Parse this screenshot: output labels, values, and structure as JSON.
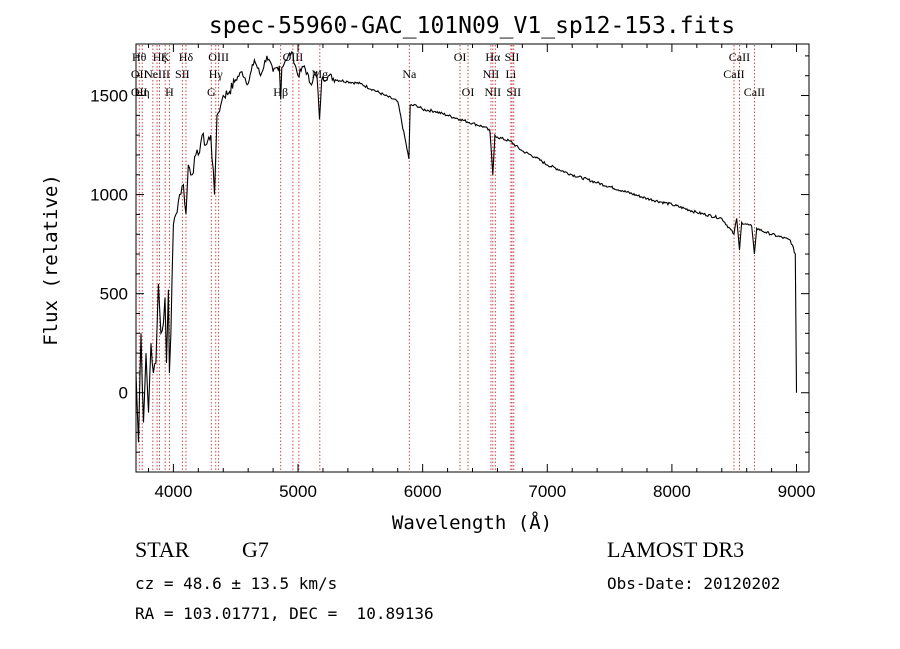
{
  "chart_data": {
    "type": "line",
    "title": "spec-55960-GAC_101N09_V1_sp12-153.fits",
    "xlabel": "Wavelength (Å)",
    "ylabel": "Flux (relative)",
    "xlim": [
      3700,
      9100
    ],
    "ylim": [
      -400,
      1760
    ],
    "xticks": [
      4000,
      5000,
      6000,
      7000,
      8000,
      9000
    ],
    "yticks": [
      0,
      500,
      1000,
      1500
    ],
    "series": [
      {
        "name": "flux",
        "x": [
          3700,
          3720,
          3740,
          3760,
          3780,
          3800,
          3820,
          3840,
          3860,
          3880,
          3900,
          3920,
          3933,
          3945,
          3960,
          3968,
          3980,
          4000,
          4020,
          4050,
          4080,
          4101,
          4120,
          4150,
          4180,
          4200,
          4230,
          4260,
          4300,
          4330,
          4340,
          4350,
          4380,
          4400,
          4450,
          4500,
          4550,
          4600,
          4650,
          4700,
          4750,
          4800,
          4850,
          4861,
          4870,
          4900,
          4950,
          5000,
          5050,
          5100,
          5150,
          5172,
          5190,
          5250,
          5300,
          5400,
          5500,
          5600,
          5700,
          5800,
          5890,
          5900,
          5950,
          6000,
          6100,
          6200,
          6300,
          6400,
          6500,
          6540,
          6563,
          6580,
          6600,
          6700,
          6800,
          6900,
          7000,
          7200,
          7400,
          7600,
          7800,
          8000,
          8200,
          8400,
          8498,
          8520,
          8542,
          8560,
          8600,
          8640,
          8662,
          8680,
          8750,
          8850,
          8950,
          8990,
          8995,
          9000
        ],
        "y": [
          100,
          -250,
          300,
          -150,
          200,
          -100,
          250,
          100,
          150,
          550,
          300,
          350,
          480,
          150,
          520,
          100,
          300,
          850,
          900,
          1000,
          1050,
          900,
          1150,
          1100,
          1200,
          1200,
          1300,
          1250,
          1300,
          1000,
          1200,
          1400,
          1450,
          1500,
          1520,
          1580,
          1620,
          1560,
          1680,
          1600,
          1700,
          1620,
          1650,
          1480,
          1640,
          1680,
          1720,
          1600,
          1650,
          1560,
          1620,
          1380,
          1580,
          1600,
          1580,
          1570,
          1560,
          1530,
          1500,
          1470,
          1180,
          1450,
          1450,
          1430,
          1420,
          1400,
          1380,
          1360,
          1340,
          1320,
          1100,
          1300,
          1290,
          1270,
          1220,
          1190,
          1150,
          1100,
          1060,
          1020,
          980,
          950,
          910,
          880,
          800,
          880,
          720,
          860,
          850,
          840,
          700,
          830,
          810,
          790,
          770,
          700,
          350,
          0
        ]
      }
    ],
    "line_marks": [
      {
        "x": 3726,
        "labels": [
          "Hθ",
          "OII",
          "OII"
        ],
        "rows": [
          1,
          2,
          3
        ]
      },
      {
        "x": 3750,
        "labels": [
          "Hη"
        ],
        "rows": [
          3
        ]
      },
      {
        "x": 3835,
        "labels": [],
        "rows": []
      },
      {
        "x": 3869,
        "labels": [
          "NeIII"
        ],
        "rows": [
          2
        ]
      },
      {
        "x": 3889,
        "labels": [
          "Hζ"
        ],
        "rows": [
          1
        ]
      },
      {
        "x": 3934,
        "labels": [
          "K"
        ],
        "rows": [
          1
        ]
      },
      {
        "x": 3968,
        "labels": [
          "H"
        ],
        "rows": [
          3
        ]
      },
      {
        "x": 4072,
        "labels": [
          "SII"
        ],
        "rows": [
          2
        ]
      },
      {
        "x": 4101,
        "labels": [
          "Hδ"
        ],
        "rows": [
          1
        ]
      },
      {
        "x": 4304,
        "labels": [
          "G"
        ],
        "rows": [
          3
        ]
      },
      {
        "x": 4340,
        "labels": [
          "Hγ"
        ],
        "rows": [
          2
        ]
      },
      {
        "x": 4363,
        "labels": [
          "OIII"
        ],
        "rows": [
          1
        ]
      },
      {
        "x": 4861,
        "labels": [
          "Hβ"
        ],
        "rows": [
          3
        ]
      },
      {
        "x": 4959,
        "labels": [
          "OIII"
        ],
        "rows": [
          1
        ]
      },
      {
        "x": 5007,
        "labels": [],
        "rows": []
      },
      {
        "x": 5175,
        "labels": [
          "Mg"
        ],
        "rows": [
          2
        ]
      },
      {
        "x": 5893,
        "labels": [
          "Na"
        ],
        "rows": [
          2
        ]
      },
      {
        "x": 6300,
        "labels": [
          "OI"
        ],
        "rows": [
          1
        ]
      },
      {
        "x": 6364,
        "labels": [
          "OI"
        ],
        "rows": [
          3
        ]
      },
      {
        "x": 6548,
        "labels": [
          "NII"
        ],
        "rows": [
          2
        ]
      },
      {
        "x": 6563,
        "labels": [
          "Hα",
          "NII"
        ],
        "rows": [
          1,
          3
        ]
      },
      {
        "x": 6583,
        "labels": [],
        "rows": []
      },
      {
        "x": 6708,
        "labels": [
          "Li"
        ],
        "rows": [
          2
        ]
      },
      {
        "x": 6717,
        "labels": [
          "SII"
        ],
        "rows": [
          1
        ]
      },
      {
        "x": 6731,
        "labels": [
          "SII"
        ],
        "rows": [
          3
        ]
      },
      {
        "x": 8498,
        "labels": [
          "CaII"
        ],
        "rows": [
          2
        ]
      },
      {
        "x": 8542,
        "labels": [
          "CaII"
        ],
        "rows": [
          1
        ]
      },
      {
        "x": 8662,
        "labels": [
          "CaII"
        ],
        "rows": [
          3
        ]
      }
    ],
    "colors": {
      "line": "#000000",
      "marker": "#cc3333"
    }
  },
  "info": {
    "class": "STAR",
    "subclass": "G7",
    "survey": "LAMOST DR3",
    "cz": "cz = 48.6 ± 13.5 km/s",
    "obs_date": "Obs-Date: 20120202",
    "radec": "RA = 103.01771, DEC =  10.89136"
  }
}
